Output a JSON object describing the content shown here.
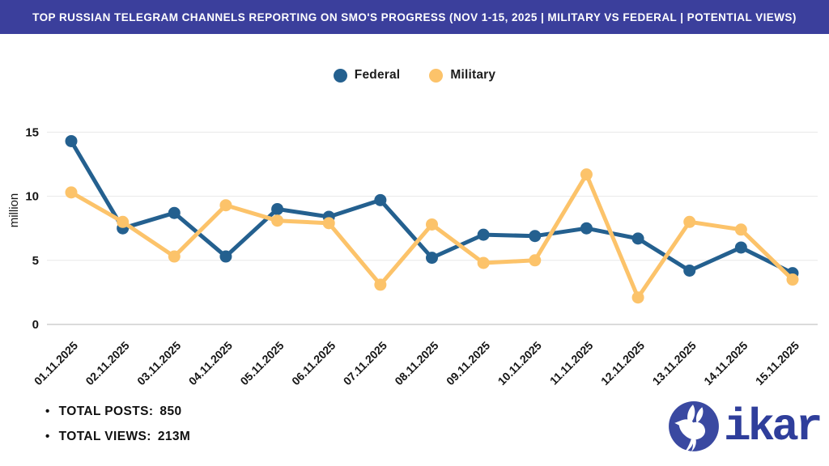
{
  "header": {
    "title": "TOP RUSSIAN TELEGRAM CHANNELS REPORTING ON SMO'S PROGRESS (NOV 1-15, 2025 | MILITARY VS FEDERAL | POTENTIAL VIEWS)"
  },
  "chart_data": {
    "type": "line",
    "categories": [
      "01.11.2025",
      "02.11.2025",
      "03.11.2025",
      "04.11.2025",
      "05.11.2025",
      "06.11.2025",
      "07.11.2025",
      "08.11.2025",
      "09.11.2025",
      "10.11.2025",
      "11.11.2025",
      "12.11.2025",
      "13.11.2025",
      "14.11.2025",
      "15.11.2025"
    ],
    "series": [
      {
        "name": "Federal",
        "color": "#24608f",
        "values": [
          14.3,
          7.5,
          8.7,
          5.3,
          9.0,
          8.4,
          9.7,
          5.2,
          7.0,
          6.9,
          7.5,
          6.7,
          4.2,
          6.0,
          4.0
        ]
      },
      {
        "name": "Military",
        "color": "#fcc36a",
        "values": [
          10.3,
          8.0,
          5.3,
          9.3,
          8.1,
          7.9,
          3.1,
          7.8,
          4.8,
          5.0,
          11.7,
          2.1,
          8.0,
          7.4,
          3.5
        ]
      }
    ],
    "xlabel": "",
    "ylabel": "million",
    "yticks": [
      0,
      5,
      10,
      15
    ],
    "ylim": [
      0,
      16
    ],
    "grid": true,
    "legend_position": "top-center"
  },
  "footer": {
    "stats": [
      {
        "label": "TOTAL POSTS:",
        "value": "850"
      },
      {
        "label": "TOTAL VIEWS:",
        "value": "213M"
      }
    ]
  },
  "logo": {
    "text": "ikar",
    "icon": "dove-icon"
  },
  "colors": {
    "banner": "#3b3f9c",
    "federal": "#24608f",
    "military": "#fcc36a",
    "grid": "#e8e8e8",
    "axis_text": "#161616",
    "logo_blue": "#3a49a1",
    "logo_text": "#2f3e9b"
  }
}
